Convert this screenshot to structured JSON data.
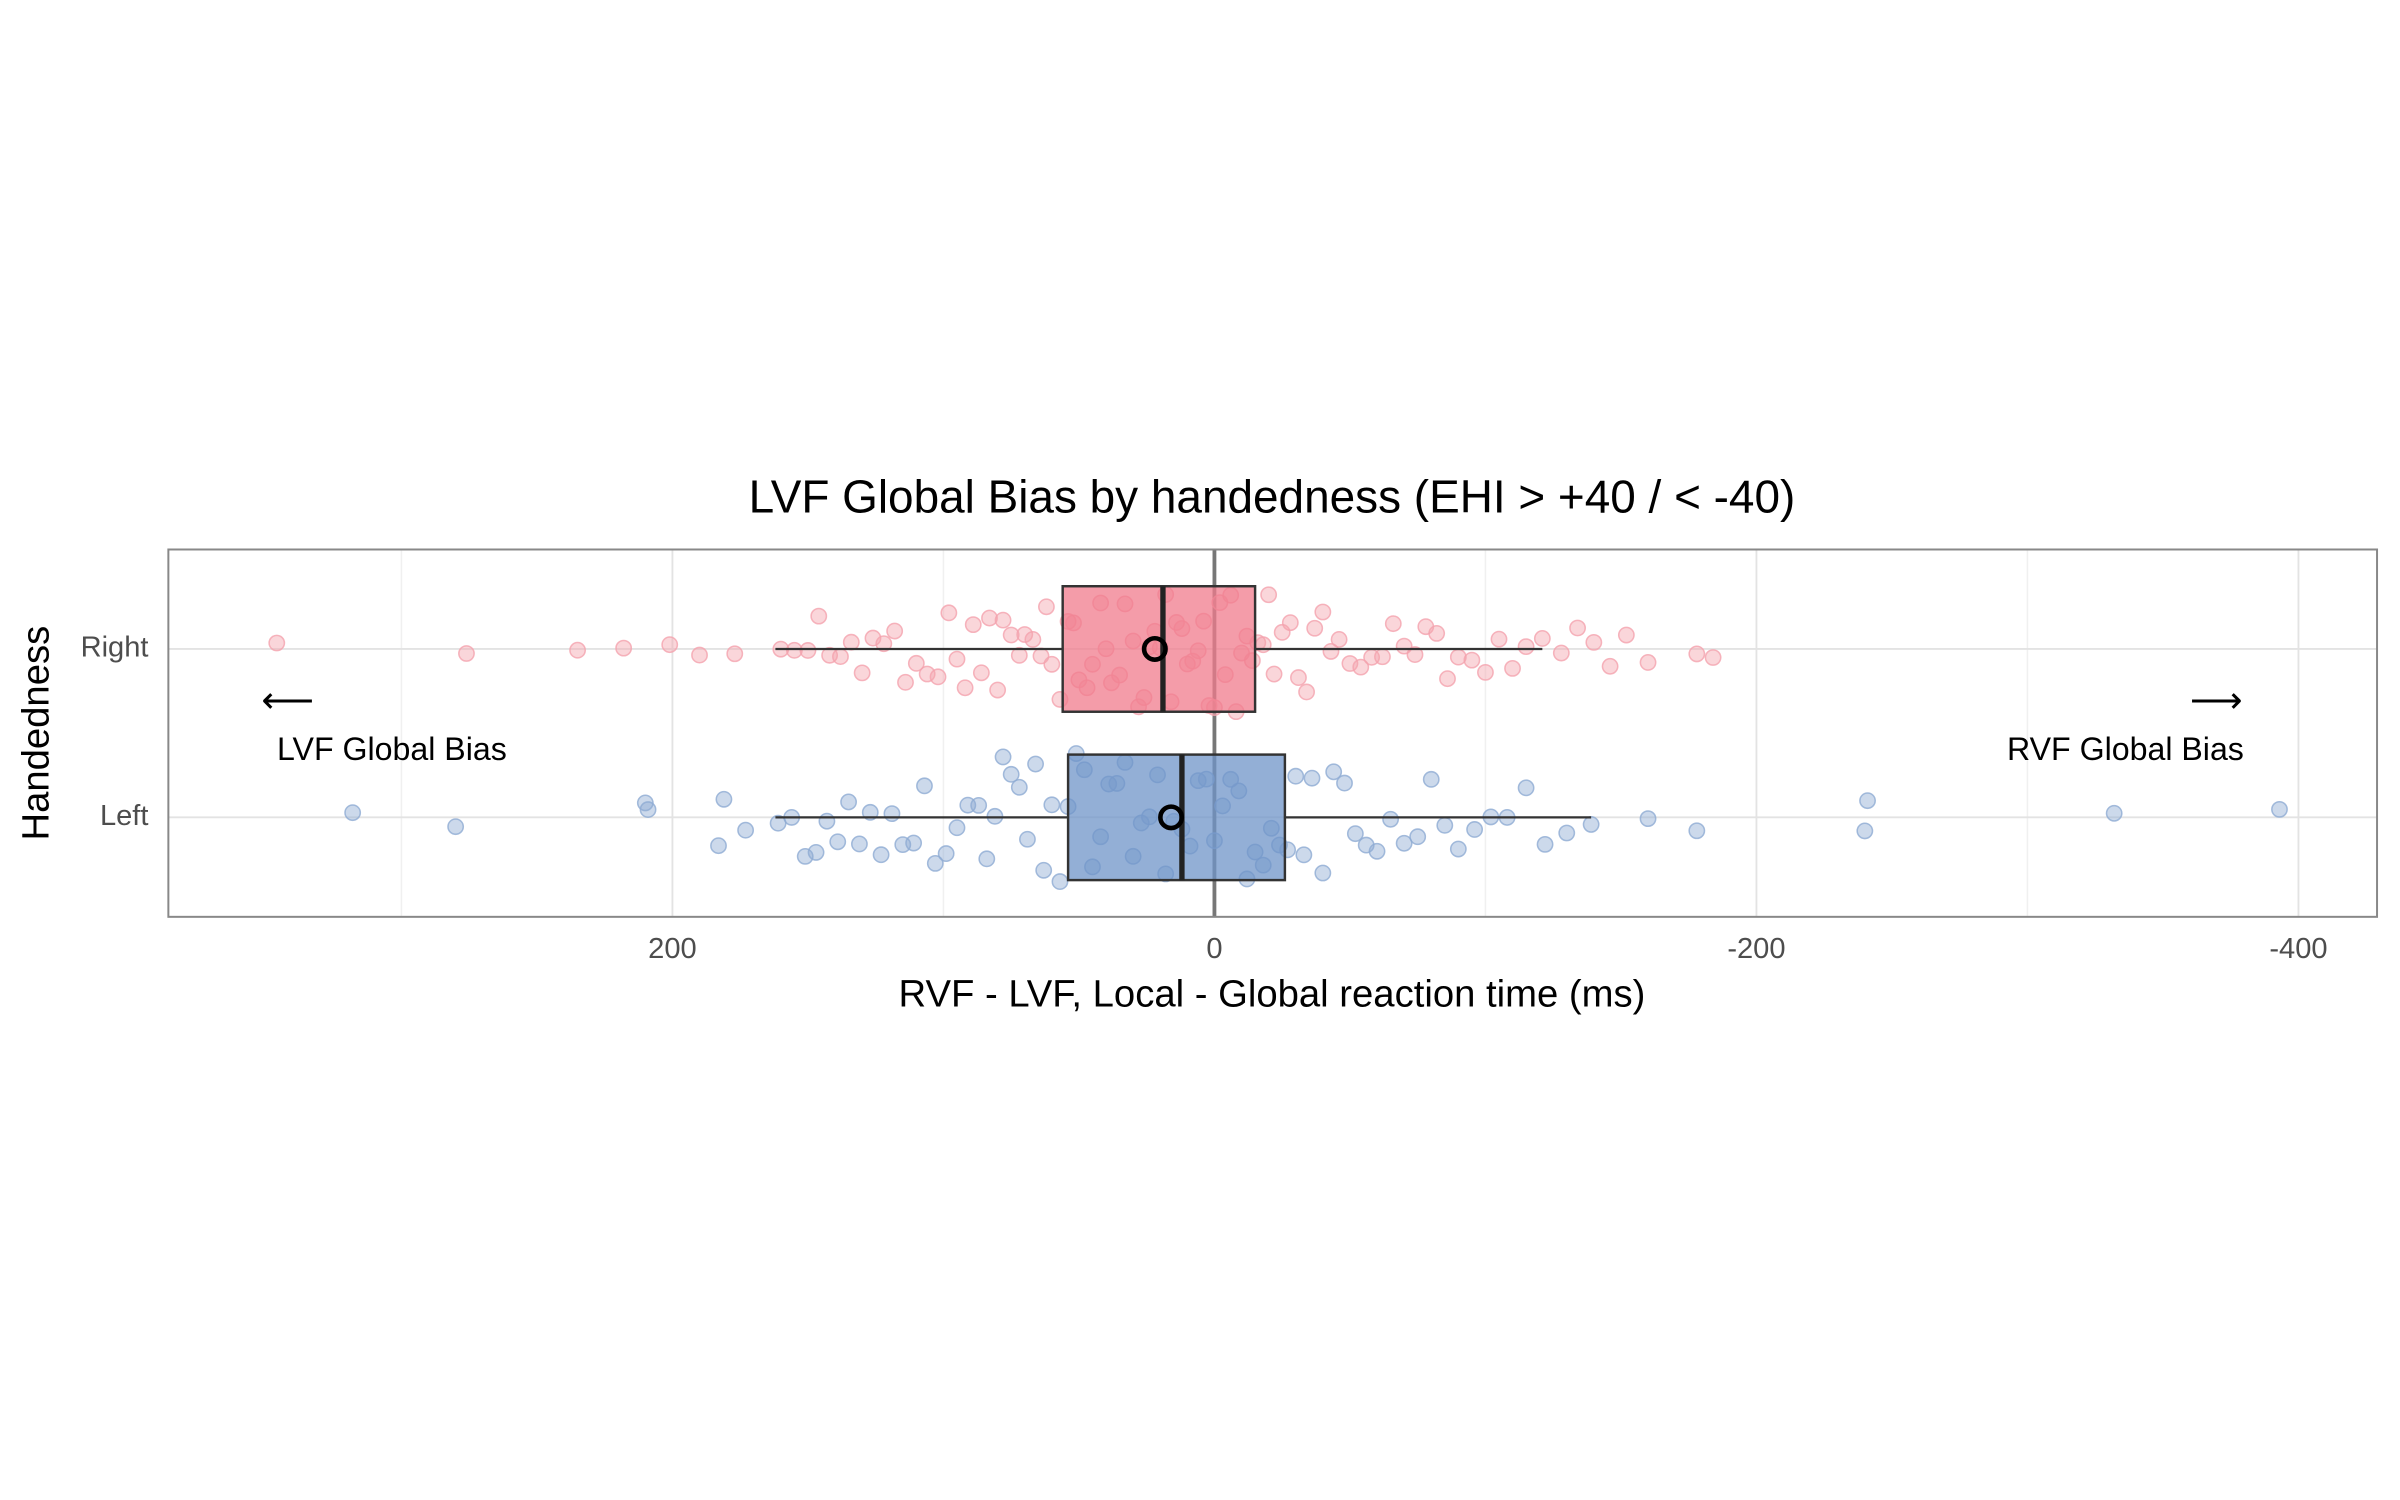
{
  "chart_data": {
    "type": "boxplot",
    "title": "LVF Global Bias by handedness (EHI > +40 / < -40)",
    "x_label": "RVF - LVF, Local - Global reaction time (ms)",
    "y_label": "Handedness",
    "xlim": [
      386,
      -429
    ],
    "xticks": [
      200,
      0,
      -200,
      -400
    ],
    "xminorticks": [
      300,
      100,
      -100,
      -300
    ],
    "vline": 0,
    "grid": true,
    "annotations": [
      "⟵",
      "LVF Global Bias",
      "⟶",
      "RVF Global Bias"
    ],
    "series": [
      {
        "name": "Right",
        "color": "#f07b8c",
        "point_color": "#f4a3ae",
        "values": [
          346,
          276,
          235,
          218,
          201,
          190,
          177,
          160,
          155,
          150,
          146,
          142,
          138,
          134,
          130,
          126,
          122,
          118,
          114,
          110,
          106,
          102,
          98,
          95,
          92,
          89,
          86,
          83,
          80,
          78,
          75,
          72,
          70,
          67,
          64,
          62,
          60,
          57,
          54,
          52,
          50,
          47,
          45,
          42,
          40,
          38,
          35,
          33,
          30,
          28,
          26,
          24,
          22,
          20,
          18,
          16,
          14,
          12,
          10,
          8,
          6,
          4,
          2,
          0,
          -2,
          -4,
          -6,
          -8,
          -10,
          -12,
          -14,
          -16,
          -18,
          -20,
          -22,
          -25,
          -28,
          -31,
          -34,
          -37,
          -40,
          -43,
          -46,
          -50,
          -54,
          -58,
          -62,
          -66,
          -70,
          -74,
          -78,
          -82,
          -86,
          -90,
          -95,
          -100,
          -105,
          -110,
          -115,
          -121,
          -128,
          -134,
          -140,
          -146,
          -152,
          -160,
          -178,
          -184
        ],
        "box": {
          "whisker_low": -121,
          "q1": -15,
          "median": 19,
          "q3": 56,
          "whisker_high": 162,
          "mean": 22
        }
      },
      {
        "name": "Left",
        "color": "#6f94c8",
        "point_color": "#8fabd3",
        "values": [
          318,
          280,
          210,
          209,
          183,
          181,
          173,
          161,
          156,
          151,
          147,
          143,
          139,
          135,
          131,
          127,
          123,
          119,
          115,
          111,
          107,
          103,
          99,
          95,
          91,
          87,
          84,
          81,
          78,
          75,
          72,
          69,
          66,
          63,
          60,
          57,
          54,
          51,
          48,
          45,
          42,
          39,
          36,
          33,
          30,
          27,
          24,
          21,
          18,
          15,
          12,
          9,
          6,
          3,
          0,
          -3,
          -6,
          -9,
          -12,
          -15,
          -18,
          -21,
          -24,
          -27,
          -30,
          -33,
          -36,
          -40,
          -44,
          -48,
          -52,
          -56,
          -60,
          -65,
          -70,
          -75,
          -80,
          -85,
          -90,
          -96,
          -102,
          -108,
          -115,
          -122,
          -130,
          -139,
          -160,
          -178,
          -240,
          -241,
          -332,
          -393
        ],
        "box": {
          "whisker_low": -139,
          "q1": -26,
          "median": 12,
          "q3": 54,
          "whisker_high": 162,
          "mean": 16
        }
      }
    ]
  }
}
